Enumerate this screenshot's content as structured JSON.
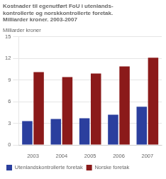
{
  "chart_data": {
    "type": "bar",
    "title": [
      "Kostnader til egenutført FoU i utenlands-",
      "kontrollerte og norskkontrollerte foretak.",
      "Milliarder kroner. 2003-2007"
    ],
    "ylabel": "Milliarder kroner",
    "categories": [
      "2003",
      "2004",
      "2005",
      "2006",
      "2007"
    ],
    "series": [
      {
        "name": "Utenlandskontrollerte foretak",
        "color": "#2b3f9e",
        "values": [
          3.3,
          3.6,
          3.7,
          4.2,
          5.3
        ]
      },
      {
        "name": "Norske foretak",
        "color": "#8b1a1a",
        "values": [
          10.1,
          9.4,
          9.9,
          10.9,
          12.1
        ]
      }
    ],
    "ylim": [
      0,
      15
    ],
    "yticks": [
      0,
      3,
      6,
      9,
      12,
      15
    ],
    "grid": true,
    "legend": "bottom"
  }
}
